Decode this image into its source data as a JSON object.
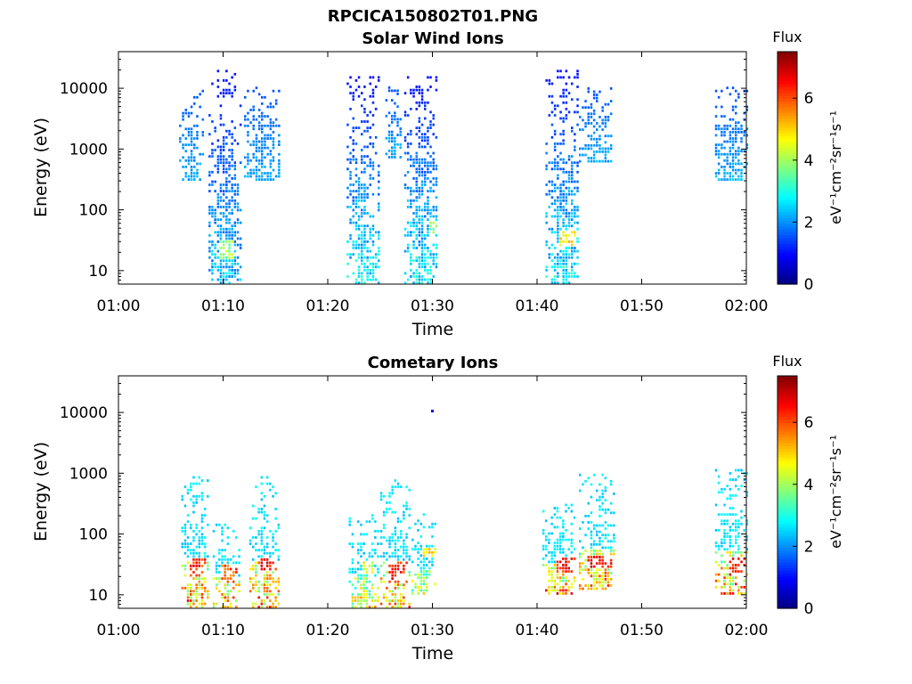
{
  "figure": {
    "title": "RPCICA150802T01.PNG"
  },
  "chart_data": [
    {
      "type": "heatmap",
      "title": "Solar Wind Ions",
      "xlabel": "Time",
      "ylabel": "Energy (eV)",
      "x_ticks": [
        "01:00",
        "01:10",
        "01:20",
        "01:30",
        "01:40",
        "01:50",
        "02:00"
      ],
      "x_range_minutes": [
        0,
        60
      ],
      "y_ticks": [
        "10",
        "100",
        "1000",
        "10000"
      ],
      "y_scale": "log",
      "ylim": [
        6,
        40000
      ],
      "colorbar": {
        "label": "Flux",
        "unit": "eV⁻¹cm⁻²sr⁻¹s⁻¹",
        "ticks": [
          "0",
          "2",
          "4",
          "6"
        ],
        "range": [
          0,
          7.5
        ],
        "colormap": "jet"
      },
      "bursts": [
        {
          "t": [
            5.8,
            8.0
          ],
          "e": [
            300,
            10000
          ],
          "flux": [
            1.5,
            2.5
          ]
        },
        {
          "t": [
            8.6,
            11.8
          ],
          "e": [
            6,
            20000
          ],
          "flux": [
            1.0,
            3.0
          ],
          "core": {
            "t": [
              9.6,
              11.0
            ],
            "e": [
              15,
              30
            ],
            "flux": 4.5
          }
        },
        {
          "t": [
            12.0,
            15.3
          ],
          "e": [
            300,
            10000
          ],
          "flux": [
            1.5,
            2.5
          ]
        },
        {
          "t": [
            21.8,
            24.8
          ],
          "e": [
            6,
            15000
          ],
          "flux": [
            1.0,
            3.5
          ]
        },
        {
          "t": [
            25.5,
            27.0
          ],
          "e": [
            700,
            10000
          ],
          "flux": [
            1.5,
            2.5
          ]
        },
        {
          "t": [
            27.3,
            30.5
          ],
          "e": [
            6,
            15000
          ],
          "flux": [
            1.0,
            3.5
          ],
          "core": {
            "t": [
              29.5,
              30.5
            ],
            "e": [
              40,
              60
            ],
            "flux": 4.2
          }
        },
        {
          "t": [
            40.8,
            44.0
          ],
          "e": [
            6,
            20000
          ],
          "flux": [
            1.0,
            3.5
          ],
          "core": {
            "t": [
              42.0,
              43.6
            ],
            "e": [
              25,
              45
            ],
            "flux": 5.5
          }
        },
        {
          "t": [
            44.0,
            47.0
          ],
          "e": [
            600,
            10000
          ],
          "flux": [
            1.5,
            2.5
          ]
        },
        {
          "t": [
            57.0,
            60.0
          ],
          "e": [
            300,
            10000
          ],
          "flux": [
            1.5,
            2.5
          ]
        }
      ]
    },
    {
      "type": "heatmap",
      "title": "Cometary Ions",
      "xlabel": "Time",
      "ylabel": "Energy (eV)",
      "x_ticks": [
        "01:00",
        "01:10",
        "01:20",
        "01:30",
        "01:40",
        "01:50",
        "02:00"
      ],
      "x_range_minutes": [
        0,
        60
      ],
      "y_ticks": [
        "10",
        "100",
        "1000",
        "10000"
      ],
      "y_scale": "log",
      "ylim": [
        6,
        40000
      ],
      "colorbar": {
        "label": "Flux",
        "unit": "eV⁻¹cm⁻²sr⁻¹s⁻¹",
        "ticks": [
          "0",
          "2",
          "4",
          "6"
        ],
        "range": [
          0,
          7.5
        ],
        "colormap": "jet"
      },
      "isolated_points": [
        {
          "t": 30.0,
          "e": 10500,
          "flux": 1.0
        }
      ],
      "bursts": [
        {
          "t": [
            6.0,
            8.6
          ],
          "e": [
            6,
            900
          ],
          "flux": [
            1.5,
            7.0
          ],
          "core": {
            "t": [
              6.8,
              8.4
            ],
            "e": [
              18,
              40
            ],
            "flux": 6.8
          }
        },
        {
          "t": [
            9.0,
            11.5
          ],
          "e": [
            6,
            150
          ],
          "flux": [
            1.5,
            7.0
          ],
          "core": {
            "t": [
              9.7,
              11.2
            ],
            "e": [
              15,
              30
            ],
            "flux": 6.5
          }
        },
        {
          "t": [
            12.5,
            15.2
          ],
          "e": [
            6,
            900
          ],
          "flux": [
            1.5,
            7.0
          ],
          "core": {
            "t": [
              13.2,
              15.0
            ],
            "e": [
              25,
              40
            ],
            "flux": 7.0
          }
        },
        {
          "t": [
            22.0,
            24.8
          ],
          "e": [
            6,
            200
          ],
          "flux": [
            1.5,
            6.0
          ],
          "core": {
            "t": [
              23.3,
              24.3
            ],
            "e": [
              20,
              35
            ],
            "flux": 5.0
          }
        },
        {
          "t": [
            25.0,
            27.8
          ],
          "e": [
            6,
            800
          ],
          "flux": [
            1.5,
            7.0
          ],
          "core": {
            "t": [
              25.8,
              27.5
            ],
            "e": [
              15,
              35
            ],
            "flux": 7.0
          }
        },
        {
          "t": [
            28.0,
            30.3
          ],
          "e": [
            10,
            200
          ],
          "flux": [
            1.5,
            5.5
          ],
          "core": {
            "t": [
              29.0,
              30.3
            ],
            "e": [
              40,
              60
            ],
            "flux": 5.5
          }
        },
        {
          "t": [
            40.5,
            43.6
          ],
          "e": [
            10,
            300
          ],
          "flux": [
            1.5,
            7.0
          ],
          "core": {
            "t": [
              41.8,
              43.5
            ],
            "e": [
              22,
              40
            ],
            "flux": 7.0
          }
        },
        {
          "t": [
            44.0,
            47.4
          ],
          "e": [
            12,
            900
          ],
          "flux": [
            1.5,
            7.0
          ],
          "core": {
            "t": [
              44.6,
              47.0
            ],
            "e": [
              25,
              40
            ],
            "flux": 7.2
          }
        },
        {
          "t": [
            57.0,
            60.0
          ],
          "e": [
            10,
            1100
          ],
          "flux": [
            1.5,
            7.0
          ],
          "core": {
            "t": [
              58.2,
              59.8
            ],
            "e": [
              20,
              40
            ],
            "flux": 7.0
          }
        }
      ]
    }
  ]
}
